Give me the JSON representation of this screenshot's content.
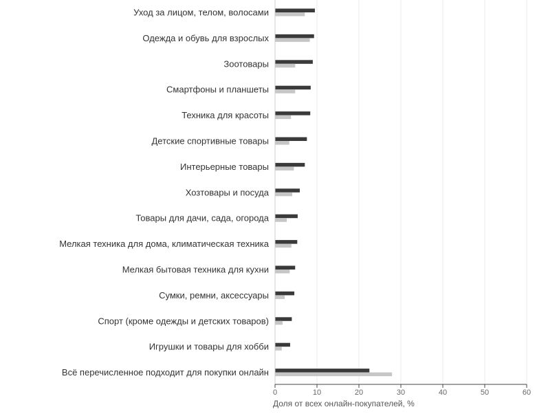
{
  "chart_data": {
    "type": "bar",
    "orientation": "horizontal",
    "categories": [
      "Уход за лицом, телом, волосами",
      "Одежда и обувь для взрослых",
      "Зоотовары",
      "Смартфоны и планшеты",
      "Техника для красоты",
      "Детские спортивные товары",
      "Интерьерные товары",
      "Хозтовары и посуда",
      "Товары для дачи, сада, огорода",
      "Мелкая техника для дома, климатическая техника",
      "Мелкая бытовая техника для кухни",
      "Сумки, ремни, аксессуары",
      "Спорт (кроме одежды и детских товаров)",
      "Игрушки и товары для хобби",
      "Всё перечисленное подходит для покупки онлайн"
    ],
    "series": [
      {
        "color": "#3a3a3a",
        "values": [
          9.5,
          9.3,
          9.0,
          8.5,
          8.4,
          7.6,
          7.1,
          5.9,
          5.4,
          5.3,
          4.8,
          4.6,
          4.0,
          3.6,
          22.5
        ]
      },
      {
        "color": "#c6c6c6",
        "values": [
          7.1,
          8.3,
          4.8,
          4.8,
          3.8,
          3.4,
          4.5,
          4.1,
          2.8,
          3.9,
          3.5,
          2.3,
          1.8,
          1.6,
          27.9
        ]
      }
    ],
    "xlabel": "Доля от всех онлайн-покупателей, %",
    "xlim": [
      0,
      60
    ],
    "xticks": [
      0,
      10,
      20,
      30,
      40,
      50,
      60
    ],
    "grid": "vertical",
    "legend": "none"
  }
}
